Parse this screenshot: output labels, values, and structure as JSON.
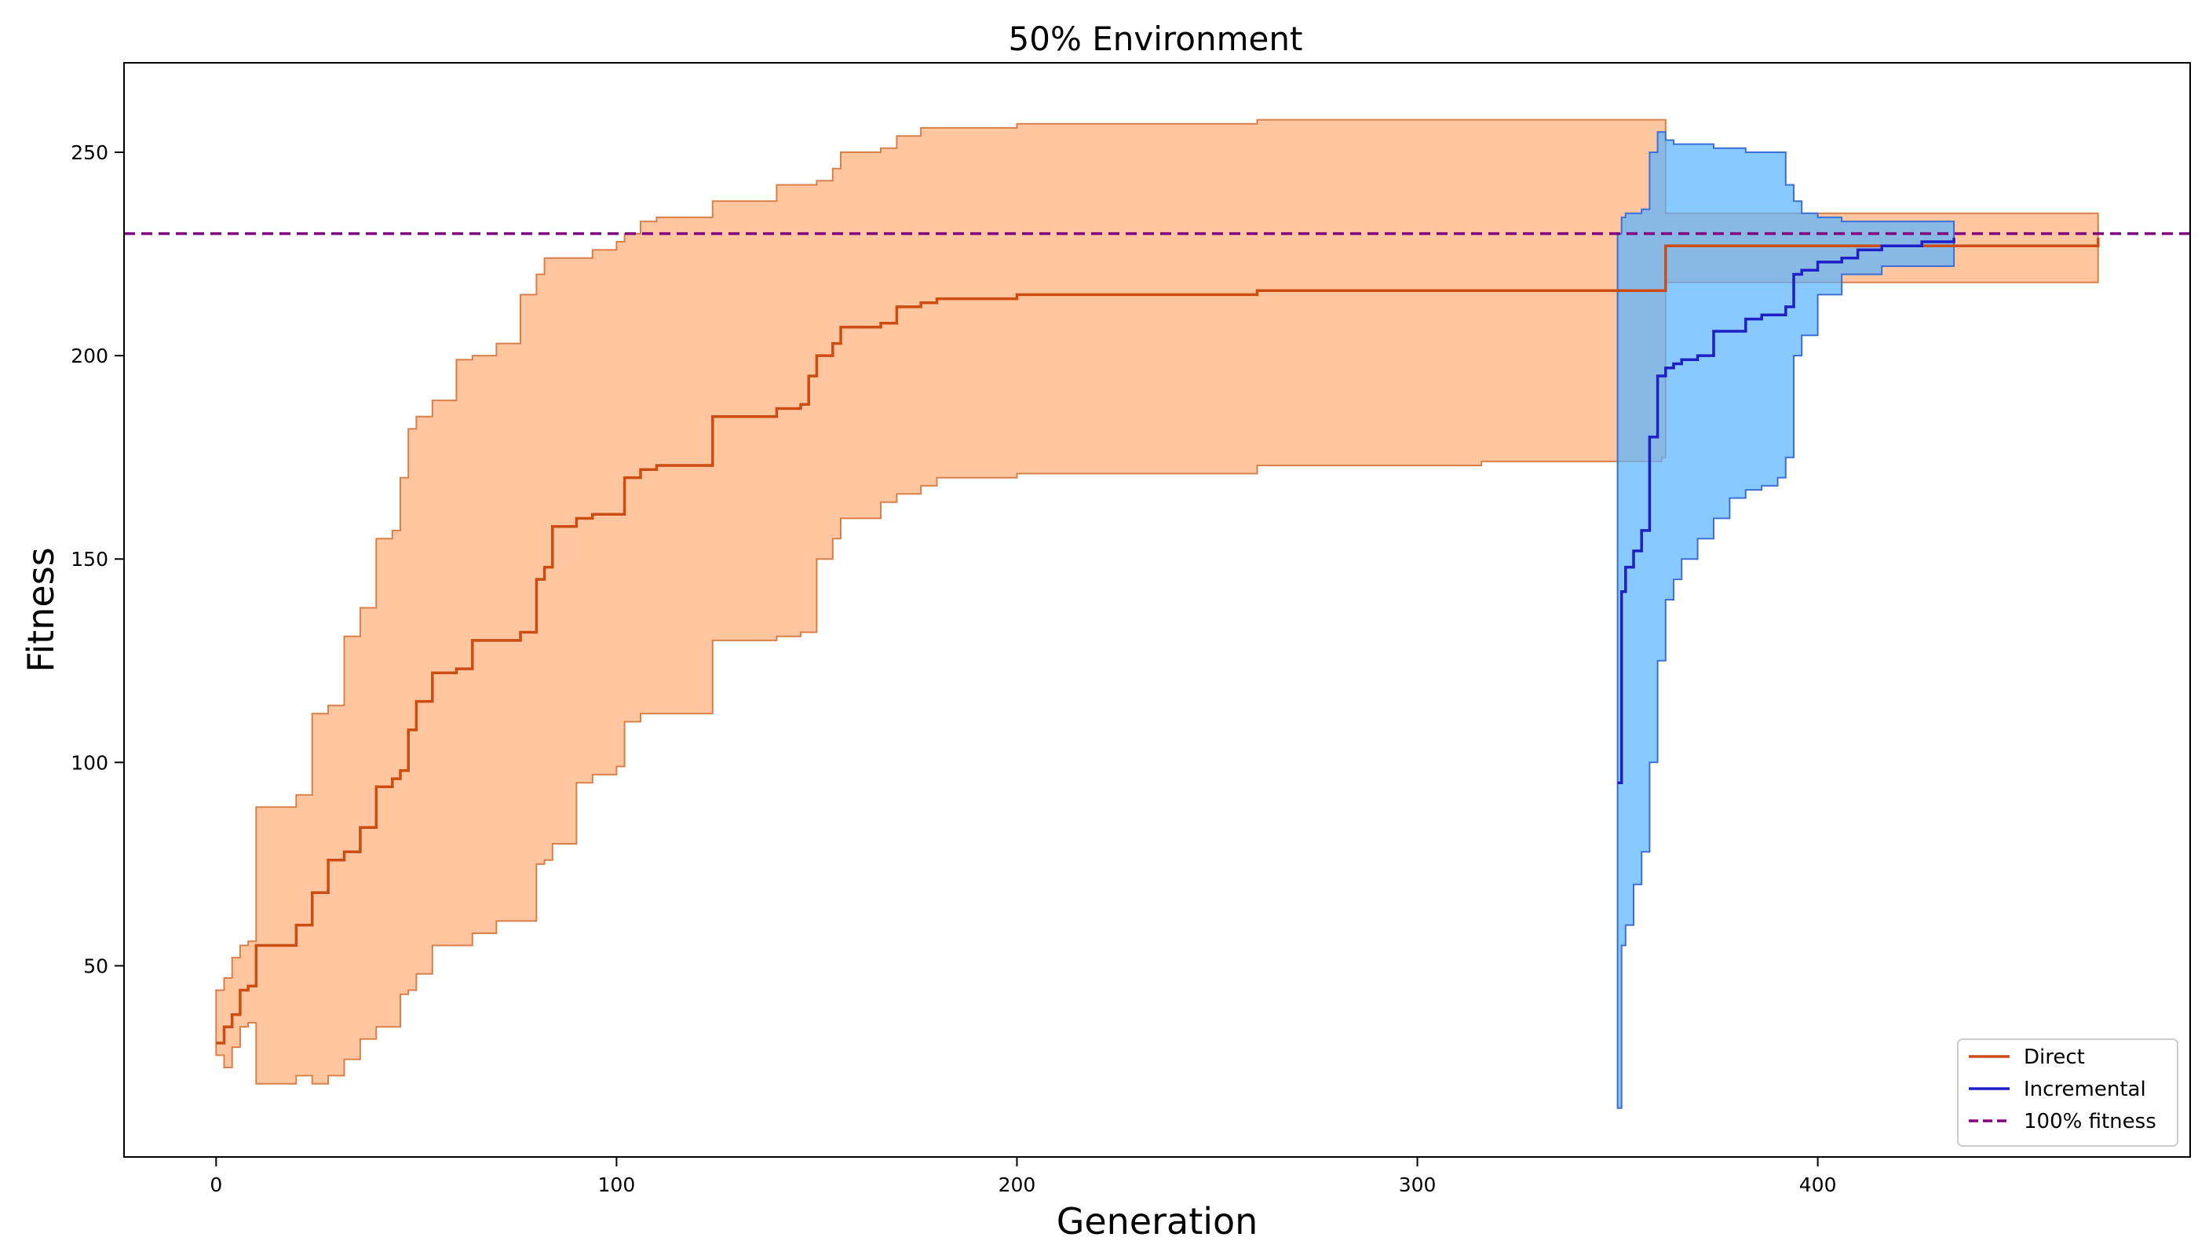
{
  "chart_data": {
    "type": "line",
    "title": "50% Environment",
    "xlabel": "Generation",
    "ylabel": "Fitness",
    "xlim": [
      -23,
      493
    ],
    "ylim": [
      3,
      272
    ],
    "xticks": [
      0,
      100,
      200,
      300,
      400
    ],
    "yticks": [
      50,
      100,
      150,
      200,
      250
    ],
    "grid": false,
    "legend_position": "lower-right",
    "reference_line": {
      "name": "100% fitness",
      "y": 230,
      "color": "#800080",
      "style": "dashed"
    },
    "series": [
      {
        "name": "Direct",
        "color": "#cc4c12",
        "band_color": "#ffb07c",
        "band_edge_color": "#d9804a",
        "x": [
          0,
          2,
          4,
          6,
          8,
          10,
          20,
          24,
          28,
          32,
          36,
          40,
          44,
          46,
          48,
          50,
          54,
          60,
          64,
          70,
          76,
          80,
          82,
          84,
          90,
          94,
          100,
          102,
          106,
          110,
          122,
          124,
          140,
          146,
          148,
          150,
          154,
          156,
          166,
          170,
          176,
          180,
          200,
          260,
          316,
          361,
          362,
          400,
          450,
          470
        ],
        "mean": [
          31,
          35,
          38,
          44,
          45,
          55,
          60,
          68,
          76,
          78,
          84,
          94,
          96,
          98,
          108,
          115,
          122,
          123,
          130,
          130,
          132,
          145,
          148,
          158,
          160,
          161,
          161,
          170,
          172,
          173,
          173,
          185,
          187,
          188,
          195,
          200,
          203,
          207,
          208,
          212,
          213,
          214,
          215,
          216,
          216,
          216,
          227,
          227,
          227,
          229
        ],
        "upper": [
          44,
          47,
          52,
          55,
          56,
          89,
          92,
          112,
          114,
          131,
          138,
          155,
          157,
          170,
          182,
          185,
          189,
          199,
          200,
          203,
          215,
          220,
          224,
          224,
          224,
          226,
          228,
          230,
          233,
          234,
          234,
          238,
          242,
          242,
          242,
          243,
          246,
          250,
          251,
          254,
          256,
          256,
          257,
          258,
          258,
          258,
          235,
          235,
          235,
          232
        ],
        "lower": [
          28,
          25,
          30,
          35,
          36,
          21,
          23,
          21,
          23,
          27,
          32,
          35,
          35,
          43,
          44,
          48,
          55,
          55,
          58,
          61,
          61,
          75,
          76,
          80,
          95,
          97,
          99,
          110,
          112,
          112,
          112,
          130,
          131,
          132,
          132,
          150,
          155,
          160,
          164,
          166,
          168,
          170,
          171,
          173,
          174,
          175,
          218,
          218,
          218,
          222
        ]
      },
      {
        "name": "Incremental",
        "color": "#1f1fc8",
        "band_color": "#5ab4ff",
        "band_edge_color": "#3d6fd6",
        "x": [
          350,
          351,
          352,
          354,
          356,
          358,
          360,
          362,
          364,
          366,
          370,
          374,
          378,
          382,
          386,
          390,
          392,
          394,
          396,
          400,
          406,
          410,
          416,
          420,
          426,
          434
        ],
        "mean": [
          95,
          142,
          148,
          152,
          157,
          180,
          195,
          197,
          198,
          199,
          200,
          206,
          206,
          209,
          210,
          210,
          212,
          220,
          221,
          223,
          224,
          226,
          227,
          227,
          228,
          229
        ],
        "upper": [
          230,
          234,
          235,
          235,
          236,
          250,
          255,
          253,
          252,
          252,
          252,
          251,
          251,
          250,
          250,
          250,
          242,
          238,
          235,
          234,
          233,
          233,
          233,
          233,
          233,
          233
        ],
        "lower": [
          15,
          55,
          60,
          70,
          78,
          100,
          125,
          140,
          145,
          150,
          155,
          160,
          165,
          167,
          168,
          170,
          175,
          200,
          205,
          215,
          220,
          220,
          222,
          222,
          222,
          222
        ]
      }
    ],
    "legend_entries": [
      {
        "label": "Direct",
        "color": "#cc4c12",
        "style": "solid"
      },
      {
        "label": "Incremental",
        "color": "#1f1fc8",
        "style": "solid"
      },
      {
        "label": "100% fitness",
        "color": "#800080",
        "style": "dashed"
      }
    ]
  }
}
